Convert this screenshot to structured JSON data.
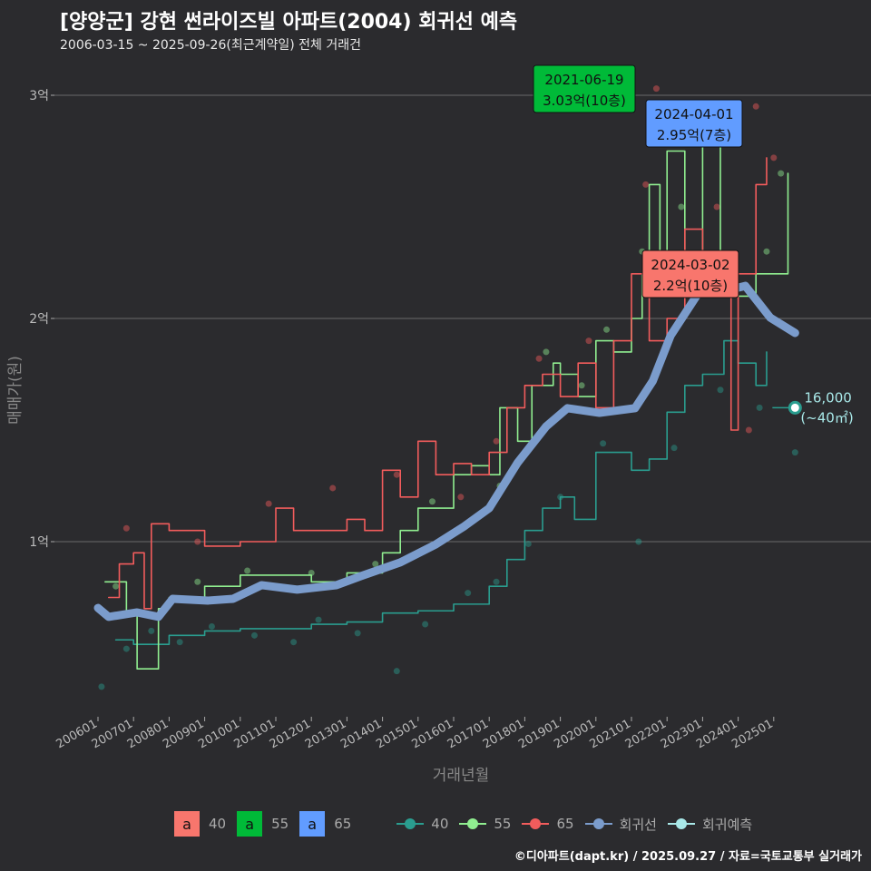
{
  "title": "[양양군] 강현 썬라이즈빌 아파트(2004) 회귀선 예측",
  "subtitle": "2006-03-15 ~ 2025-09-26(최근계약일) 전체 거래건",
  "footer": "©디아파트(dapt.kr) / 2025.09.27 / 자료=국토교통부 실거래가",
  "legend": {
    "boxes": [
      {
        "label": "40",
        "glyph": "a",
        "color": "#f8766d"
      },
      {
        "label": "55",
        "glyph": "a",
        "color": "#00ba38"
      },
      {
        "label": "65",
        "glyph": "a",
        "color": "#619cff"
      }
    ],
    "lines": [
      {
        "label": "40",
        "color": "#2a9d8f"
      },
      {
        "label": "55",
        "color": "#90ee90"
      },
      {
        "label": "65",
        "color": "#f25c5c"
      },
      {
        "label": "회귀선",
        "color": "#7b9ccc"
      },
      {
        "label": "회귀예측",
        "color": "#a8e8e8"
      }
    ]
  },
  "chart_data": {
    "type": "line",
    "title": "[양양군] 강현 썬라이즈빌 아파트(2004) 회귀선 예측",
    "xlabel": "거래년월",
    "ylabel": "매매가(원)",
    "xlim": [
      2005.6,
      2026.3
    ],
    "ylim": [
      2200,
      32000
    ],
    "x_ticks": [
      {
        "v": 2006,
        "label": "200601"
      },
      {
        "v": 2007,
        "label": "200701"
      },
      {
        "v": 2008,
        "label": "200801"
      },
      {
        "v": 2009,
        "label": "200901"
      },
      {
        "v": 2010,
        "label": "201001"
      },
      {
        "v": 2011,
        "label": "201101"
      },
      {
        "v": 2012,
        "label": "201201"
      },
      {
        "v": 2013,
        "label": "201301"
      },
      {
        "v": 2014,
        "label": "201401"
      },
      {
        "v": 2015,
        "label": "201501"
      },
      {
        "v": 2016,
        "label": "201601"
      },
      {
        "v": 2017,
        "label": "201701"
      },
      {
        "v": 2018,
        "label": "201801"
      },
      {
        "v": 2019,
        "label": "201901"
      },
      {
        "v": 2020,
        "label": "202001"
      },
      {
        "v": 2021,
        "label": "202101"
      },
      {
        "v": 2022,
        "label": "202201"
      },
      {
        "v": 2023,
        "label": "202301"
      },
      {
        "v": 2024,
        "label": "202401"
      },
      {
        "v": 2025,
        "label": "202501"
      }
    ],
    "y_ticks": [
      {
        "v": 10000,
        "label": "1억"
      },
      {
        "v": 20000,
        "label": "2억"
      },
      {
        "v": 30000,
        "label": "3억"
      }
    ],
    "series": [
      {
        "name": "40",
        "color": "#2a9d8f",
        "points": [
          [
            2006.5,
            5600
          ],
          [
            2007,
            5400
          ],
          [
            2008,
            5800
          ],
          [
            2009,
            6000
          ],
          [
            2010,
            6100
          ],
          [
            2011,
            6100
          ],
          [
            2012,
            6300
          ],
          [
            2013,
            6400
          ],
          [
            2014,
            6800
          ],
          [
            2015,
            6900
          ],
          [
            2016,
            7200
          ],
          [
            2017,
            8000
          ],
          [
            2017.5,
            9200
          ],
          [
            2018,
            10500
          ],
          [
            2018.5,
            11500
          ],
          [
            2019,
            12000
          ],
          [
            2019.4,
            11000
          ],
          [
            2020,
            14000
          ],
          [
            2021,
            13200
          ],
          [
            2021.5,
            13700
          ],
          [
            2022,
            15800
          ],
          [
            2022.5,
            17000
          ],
          [
            2023,
            17500
          ],
          [
            2023.6,
            19000
          ],
          [
            2024,
            18000
          ],
          [
            2024.5,
            17000
          ],
          [
            2024.8,
            18500
          ]
        ]
      },
      {
        "name": "55",
        "color": "#90ee90",
        "points": [
          [
            2006.2,
            8200
          ],
          [
            2006.8,
            6800
          ],
          [
            2007.1,
            4300
          ],
          [
            2007.4,
            4300
          ],
          [
            2007.7,
            7000
          ],
          [
            2008,
            7500
          ],
          [
            2009,
            8000
          ],
          [
            2010,
            8500
          ],
          [
            2011,
            8500
          ],
          [
            2012,
            8200
          ],
          [
            2013,
            8600
          ],
          [
            2014,
            9500
          ],
          [
            2014.5,
            10500
          ],
          [
            2015,
            11500
          ],
          [
            2016,
            13000
          ],
          [
            2016.5,
            13400
          ],
          [
            2017,
            13000
          ],
          [
            2017.3,
            16000
          ],
          [
            2017.8,
            14500
          ],
          [
            2018.2,
            17000
          ],
          [
            2018.8,
            18000
          ],
          [
            2019,
            17500
          ],
          [
            2019.5,
            16500
          ],
          [
            2020,
            19000
          ],
          [
            2020.5,
            18500
          ],
          [
            2021,
            20000
          ],
          [
            2021.3,
            22000
          ],
          [
            2021.5,
            26000
          ],
          [
            2021.8,
            21000
          ],
          [
            2022,
            27500
          ],
          [
            2022.5,
            22000
          ],
          [
            2023,
            28000
          ],
          [
            2023.5,
            22000
          ],
          [
            2024,
            21000
          ],
          [
            2024.5,
            22000
          ],
          [
            2025.3,
            22000
          ],
          [
            2025.4,
            26500
          ]
        ]
      },
      {
        "name": "65",
        "color": "#f25c5c",
        "points": [
          [
            2006.3,
            7500
          ],
          [
            2006.6,
            9000
          ],
          [
            2007,
            9500
          ],
          [
            2007.3,
            7000
          ],
          [
            2007.5,
            10800
          ],
          [
            2008,
            10500
          ],
          [
            2009,
            9800
          ],
          [
            2010,
            10000
          ],
          [
            2011,
            11500
          ],
          [
            2011.5,
            10500
          ],
          [
            2012,
            10500
          ],
          [
            2013,
            11000
          ],
          [
            2013.5,
            10500
          ],
          [
            2014,
            13200
          ],
          [
            2014.5,
            12000
          ],
          [
            2015,
            14500
          ],
          [
            2015.5,
            13000
          ],
          [
            2016,
            13500
          ],
          [
            2016.5,
            13000
          ],
          [
            2017,
            14000
          ],
          [
            2017.5,
            16000
          ],
          [
            2018,
            17000
          ],
          [
            2018.5,
            17500
          ],
          [
            2019,
            16500
          ],
          [
            2019.5,
            18000
          ],
          [
            2020,
            16000
          ],
          [
            2020.5,
            19000
          ],
          [
            2021,
            22000
          ],
          [
            2021.5,
            19000
          ],
          [
            2022,
            20000
          ],
          [
            2022.5,
            24000
          ],
          [
            2023,
            21000
          ],
          [
            2023.5,
            22000
          ],
          [
            2023.8,
            15000
          ],
          [
            2024,
            22000
          ],
          [
            2024.5,
            26000
          ],
          [
            2024.8,
            27200
          ]
        ]
      },
      {
        "name": "회귀선",
        "color": "#7b9ccc",
        "points": [
          [
            2006,
            7030
          ],
          [
            2006.3,
            6630
          ],
          [
            2007.1,
            6830
          ],
          [
            2007.7,
            6630
          ],
          [
            2008.1,
            7440
          ],
          [
            2009.1,
            7360
          ],
          [
            2009.8,
            7440
          ],
          [
            2010.6,
            8050
          ],
          [
            2011.6,
            7850
          ],
          [
            2012.7,
            8050
          ],
          [
            2013.4,
            8460
          ],
          [
            2014.5,
            9070
          ],
          [
            2015.5,
            9880
          ],
          [
            2016.3,
            10690
          ],
          [
            2017.0,
            11500
          ],
          [
            2017.8,
            13540
          ],
          [
            2018.6,
            15160
          ],
          [
            2019.2,
            15980
          ],
          [
            2020.1,
            15770
          ],
          [
            2021.1,
            15980
          ],
          [
            2021.6,
            17200
          ],
          [
            2022.1,
            19230
          ],
          [
            2022.6,
            20450
          ],
          [
            2023.1,
            21670
          ],
          [
            2023.7,
            21260
          ],
          [
            2024.2,
            21460
          ],
          [
            2024.9,
            20040
          ],
          [
            2025.6,
            19350
          ]
        ]
      }
    ],
    "scatter": [
      [
        2006.1,
        3500,
        "40"
      ],
      [
        2006.8,
        5200,
        "40"
      ],
      [
        2007.5,
        6000,
        "40"
      ],
      [
        2008.3,
        5500,
        "40"
      ],
      [
        2009.2,
        6200,
        "40"
      ],
      [
        2010.4,
        5800,
        "40"
      ],
      [
        2011.5,
        5500,
        "40"
      ],
      [
        2012.2,
        6500,
        "40"
      ],
      [
        2013.3,
        5900,
        "40"
      ],
      [
        2014.4,
        4200,
        "40"
      ],
      [
        2015.2,
        6300,
        "40"
      ],
      [
        2016.4,
        7700,
        "40"
      ],
      [
        2017.2,
        8200,
        "40"
      ],
      [
        2018.1,
        9900,
        "40"
      ],
      [
        2019.0,
        12000,
        "40"
      ],
      [
        2020.2,
        14400,
        "40"
      ],
      [
        2021.2,
        10000,
        "40"
      ],
      [
        2022.2,
        14200,
        "40"
      ],
      [
        2023.5,
        16800,
        "40"
      ],
      [
        2024.6,
        16000,
        "40"
      ],
      [
        2025.6,
        14000,
        "40"
      ],
      [
        2006.5,
        8000,
        "55"
      ],
      [
        2008.8,
        8200,
        "55"
      ],
      [
        2010.2,
        8700,
        "55"
      ],
      [
        2012.0,
        8600,
        "55"
      ],
      [
        2013.8,
        9000,
        "55"
      ],
      [
        2015.4,
        11800,
        "55"
      ],
      [
        2017.3,
        12500,
        "55"
      ],
      [
        2018.6,
        18500,
        "55"
      ],
      [
        2019.6,
        17000,
        "55"
      ],
      [
        2020.3,
        19500,
        "55"
      ],
      [
        2021.3,
        23000,
        "55"
      ],
      [
        2022.4,
        25000,
        "55"
      ],
      [
        2024.8,
        23000,
        "55"
      ],
      [
        2025.2,
        26500,
        "55"
      ],
      [
        2006.8,
        10600,
        "65"
      ],
      [
        2008.8,
        10000,
        "65"
      ],
      [
        2010.8,
        11700,
        "65"
      ],
      [
        2012.6,
        12400,
        "65"
      ],
      [
        2014.4,
        13000,
        "65"
      ],
      [
        2016.2,
        12000,
        "65"
      ],
      [
        2017.2,
        14500,
        "65"
      ],
      [
        2018.4,
        18200,
        "65"
      ],
      [
        2019.8,
        19000,
        "65"
      ],
      [
        2021.4,
        26000,
        "65"
      ],
      [
        2021.7,
        30300,
        "65"
      ],
      [
        2023.4,
        25000,
        "65"
      ],
      [
        2024.3,
        15000,
        "65"
      ],
      [
        2024.5,
        29500,
        "65"
      ],
      [
        2025.0,
        27200,
        "65"
      ]
    ],
    "prediction": {
      "x": 2025.6,
      "y": 16000,
      "label": "16,000",
      "area": "(~40㎡)",
      "color": "#a8e8e8"
    },
    "annotations": [
      {
        "date": "2021-06-19",
        "value": "3.03억(10층)",
        "color": "#00ba38",
        "x": 2021.5,
        "y": 30300
      },
      {
        "date": "2024-04-01",
        "value": "2.95억(7층)",
        "color": "#619cff",
        "x": 2024.25,
        "y": 29500
      },
      {
        "date": "2024-03-02",
        "value": "2.2억(10층)",
        "color": "#f8766d",
        "x": 2024.2,
        "y": 22000
      }
    ]
  }
}
